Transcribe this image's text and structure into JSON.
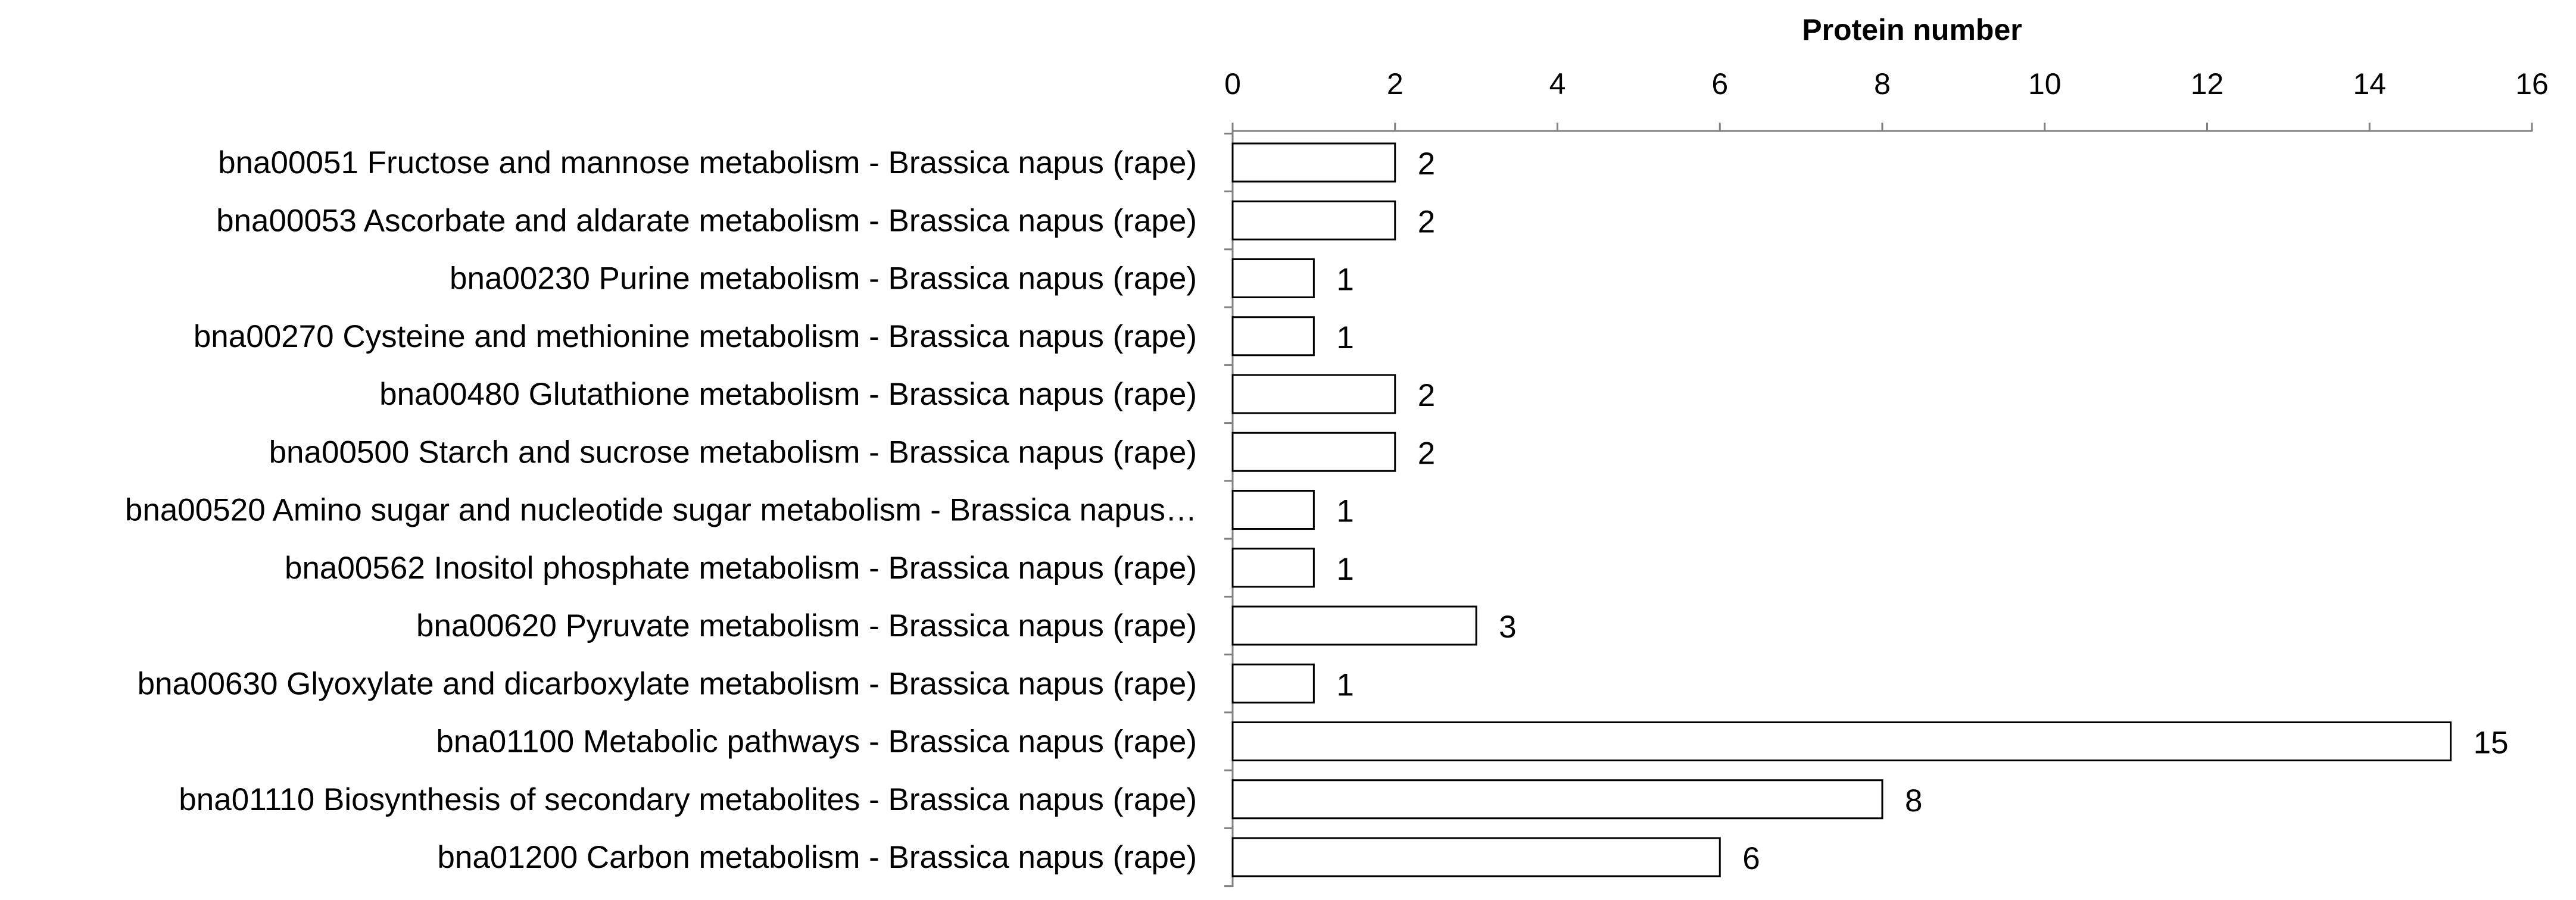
{
  "chart_data": {
    "type": "bar",
    "orientation": "horizontal",
    "xlabel": "Protein number",
    "xlim": [
      0,
      16
    ],
    "xticks": [
      0,
      2,
      4,
      6,
      8,
      10,
      12,
      14,
      16
    ],
    "x_axis_position": "top",
    "grid": false,
    "legend": "none",
    "bar_fill": "#ffffff",
    "bar_edge": "#000000",
    "axis_color": "#808080",
    "categories": [
      "bna00051 Fructose and mannose metabolism - Brassica napus (rape)",
      "bna00053 Ascorbate and aldarate metabolism - Brassica napus (rape)",
      "bna00230 Purine metabolism - Brassica napus (rape)",
      "bna00270 Cysteine and methionine metabolism - Brassica napus (rape)",
      "bna00480 Glutathione metabolism - Brassica napus (rape)",
      "bna00500 Starch and sucrose metabolism - Brassica napus (rape)",
      "bna00520 Amino sugar and nucleotide sugar metabolism - Brassica napus…",
      "bna00562 Inositol phosphate metabolism - Brassica napus (rape)",
      "bna00620 Pyruvate metabolism - Brassica napus (rape)",
      "bna00630 Glyoxylate and dicarboxylate metabolism - Brassica napus (rape)",
      "bna01100 Metabolic pathways - Brassica napus (rape)",
      "bna01110 Biosynthesis of secondary metabolites - Brassica napus (rape)",
      "bna01200 Carbon metabolism - Brassica napus (rape)"
    ],
    "values": [
      2,
      2,
      1,
      1,
      2,
      2,
      1,
      1,
      3,
      1,
      15,
      8,
      6
    ]
  }
}
